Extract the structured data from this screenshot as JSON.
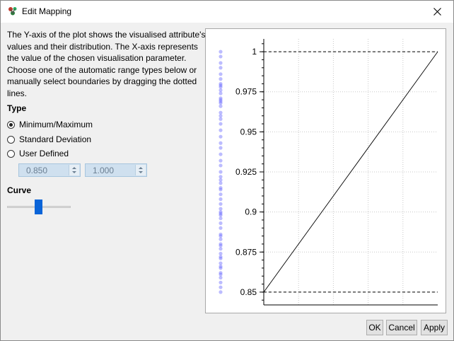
{
  "window": {
    "title": "Edit Mapping"
  },
  "description": "The Y-axis of the plot shows the visualised attribute's values and their distribution. The X-axis represents the value of the chosen visualisation parameter. Choose one of the automatic range types below or manually select boundaries by dragging the dotted lines.",
  "type_section": {
    "heading": "Type",
    "options": [
      "Minimum/Maximum",
      "Standard Deviation",
      "User Defined"
    ],
    "selected": "Minimum/Maximum"
  },
  "user_defined": {
    "min_value": "0.850",
    "max_value": "1.000"
  },
  "curve_section": {
    "heading": "Curve",
    "slider_value": 0.5
  },
  "buttons": {
    "ok": "OK",
    "cancel": "Cancel",
    "apply": "Apply"
  },
  "colors": {
    "accent": "#0a64d8",
    "distribution_points": "#6a6aff"
  },
  "chart_data": {
    "type": "line",
    "y_tick_labels": [
      "1",
      "0.975",
      "0.95",
      "0.925",
      "0.9",
      "0.875",
      "0.85"
    ],
    "y_ticks": [
      1,
      0.975,
      0.95,
      0.925,
      0.9,
      0.875,
      0.85
    ],
    "ylim": [
      0.842,
      1.008
    ],
    "xlim": [
      0,
      1
    ],
    "mapping_line": [
      [
        0,
        0.85
      ],
      [
        1,
        1
      ]
    ],
    "boundaries": [
      0.85,
      1
    ],
    "grid": true,
    "distribution_values": [
      1.0,
      0.997,
      0.993,
      0.99,
      0.986,
      0.983,
      0.979,
      0.976,
      0.974,
      0.971,
      0.968,
      0.966,
      0.962,
      0.958,
      0.955,
      0.951,
      0.947,
      0.943,
      0.94,
      0.936,
      0.932,
      0.929,
      0.925,
      0.922,
      0.918,
      0.915,
      0.911,
      0.908,
      0.905,
      0.902,
      0.899,
      0.896,
      0.893,
      0.89,
      0.886,
      0.883,
      0.88,
      0.877,
      0.874,
      0.871,
      0.868,
      0.865,
      0.862,
      0.859,
      0.856,
      0.853,
      0.85,
      0.98,
      0.978,
      0.97,
      0.969,
      0.96,
      0.92,
      0.914,
      0.9,
      0.898,
      0.885,
      0.879,
      0.872,
      0.866,
      0.861
    ]
  }
}
